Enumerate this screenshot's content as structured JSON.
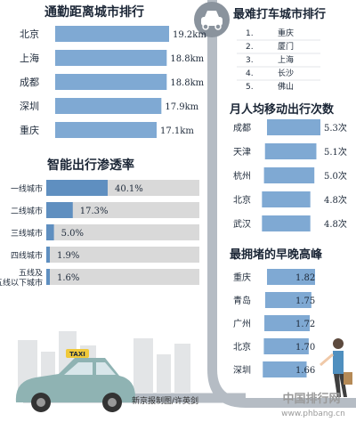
{
  "credit": "新京报制图/许英剑",
  "watermark": {
    "brand": "中国排行网",
    "url": "www.phbang.cn"
  },
  "taxi_sign": "TAXI",
  "colors": {
    "bar": "#7fa9d3",
    "bar_dark": "#5f8fc0",
    "track": "#d9d9d9",
    "road": "#b5bcc4",
    "car": "#8fb3b3"
  },
  "icons": [
    "car-icon",
    "taxi-car-icon",
    "pedestrian-icon",
    "city-skyline-icon"
  ],
  "chart_data": [
    {
      "type": "bar",
      "title": "通勤距离城市排行",
      "categories": [
        "北京",
        "上海",
        "成都",
        "深圳",
        "重庆"
      ],
      "values": [
        19.2,
        18.8,
        18.8,
        17.9,
        17.1
      ],
      "value_labels": [
        "19.2km",
        "18.8km",
        "18.8km",
        "17.9km",
        "17.1km"
      ],
      "unit": "km",
      "xlim": [
        0,
        19.2
      ]
    },
    {
      "type": "bar",
      "title": "智能出行渗透率",
      "categories": [
        "一线城市",
        "二线城市",
        "三线城市",
        "四线城市",
        "五线及\n五线以下城市"
      ],
      "values": [
        40.1,
        17.3,
        5.0,
        1.9,
        1.6
      ],
      "value_labels": [
        "40.1%",
        "17.3%",
        "5.0%",
        "1.9%",
        "1.6%"
      ],
      "unit": "%",
      "xlim": [
        0,
        100
      ]
    },
    {
      "type": "table",
      "title": "最难打车城市排行",
      "ranks": [
        "1.",
        "2.",
        "3.",
        "4.",
        "5."
      ],
      "cities": [
        "重庆",
        "厦门",
        "上海",
        "长沙",
        "佛山"
      ]
    },
    {
      "type": "bar",
      "title": "月人均移动出行次数",
      "categories": [
        "成都",
        "天津",
        "杭州",
        "北京",
        "武汉"
      ],
      "values": [
        5.3,
        5.1,
        5.0,
        4.8,
        4.8
      ],
      "value_labels": [
        "5.3次",
        "5.1次",
        "5.0次",
        "4.8次",
        "4.8次"
      ],
      "unit": "次",
      "xlim": [
        0,
        5.3
      ]
    },
    {
      "type": "bar",
      "title": "最拥堵的早晚高峰",
      "categories": [
        "重庆",
        "青岛",
        "广州",
        "北京",
        "深圳"
      ],
      "values": [
        1.82,
        1.75,
        1.72,
        1.7,
        1.66
      ],
      "value_labels": [
        "1.82",
        "1.75",
        "1.72",
        "1.70",
        "1.66"
      ],
      "xlim": [
        0,
        1.82
      ]
    }
  ]
}
